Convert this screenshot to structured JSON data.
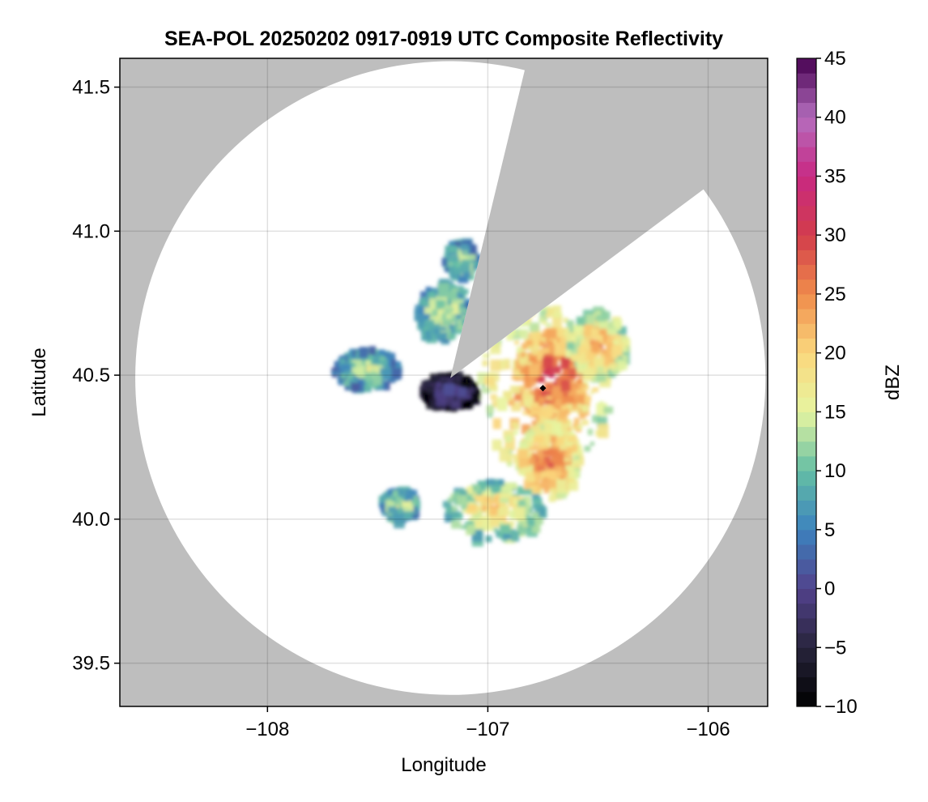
{
  "chart_data": {
    "type": "heatmap",
    "title": "SEA-POL 20250202 0917-0919 UTC Composite Reflectivity",
    "xlabel": "Longitude",
    "ylabel": "Latitude",
    "xlim": [
      -108.67,
      -105.73
    ],
    "ylim": [
      39.35,
      41.6
    ],
    "xticks": [
      -108,
      -107,
      -106
    ],
    "xtick_labels": [
      "−108",
      "−107",
      "−106"
    ],
    "yticks": [
      39.5,
      40.0,
      40.5,
      41.0,
      41.5
    ],
    "ytick_labels": [
      "39.5",
      "40.0",
      "40.5",
      "41.0",
      "41.5"
    ],
    "grid": true,
    "background_color": "#bebebe",
    "radar": {
      "center_lon": -107.17,
      "center_lat": 40.49,
      "radius_lon": 1.43,
      "radius_lat": 1.1,
      "blocked_sector_lon_lat": [
        [
          -107.17,
          40.49
        ],
        [
          -106.84,
          41.53
        ],
        [
          -106.06,
          41.12
        ]
      ]
    },
    "site_marker": {
      "lon": -106.75,
      "lat": 40.455,
      "color": "#000000"
    },
    "colorbar": {
      "label": "dBZ",
      "min": -10,
      "max": 45,
      "ticks": [
        -10,
        -5,
        0,
        5,
        10,
        15,
        20,
        25,
        30,
        35,
        40,
        45
      ],
      "tick_labels": [
        "−10",
        "−5",
        "0",
        "5",
        "10",
        "15",
        "20",
        "25",
        "30",
        "35",
        "40",
        "45"
      ],
      "colormap": "spectral_then_magenta_purple"
    },
    "echo_regions": [
      {
        "name": "east-main-band",
        "lon": -106.74,
        "lat": 40.44,
        "lon_half_width": 0.3,
        "lat_half_height": 0.3,
        "dbz": 22
      },
      {
        "name": "east-main-core",
        "lon": -106.7,
        "lat": 40.5,
        "lon_half_width": 0.16,
        "lat_half_height": 0.16,
        "dbz": 27
      },
      {
        "name": "east-south-tail",
        "lon": -106.72,
        "lat": 40.2,
        "lon_half_width": 0.14,
        "lat_half_height": 0.13,
        "dbz": 24
      },
      {
        "name": "east-northeast-lobe",
        "lon": -106.5,
        "lat": 40.6,
        "lon_half_width": 0.13,
        "lat_half_height": 0.12,
        "dbz": 21
      },
      {
        "name": "south-band",
        "lon": -106.97,
        "lat": 40.03,
        "lon_half_width": 0.22,
        "lat_half_height": 0.1,
        "dbz": 18
      },
      {
        "name": "south-band-west",
        "lon": -107.4,
        "lat": 40.05,
        "lon_half_width": 0.08,
        "lat_half_height": 0.05,
        "dbz": 14
      },
      {
        "name": "north-near-sector",
        "lon": -107.2,
        "lat": 40.72,
        "lon_half_width": 0.12,
        "lat_half_height": 0.1,
        "dbz": 14
      },
      {
        "name": "north-cell",
        "lon": -107.12,
        "lat": 40.9,
        "lon_half_width": 0.07,
        "lat_half_height": 0.06,
        "dbz": 13
      },
      {
        "name": "west-streak",
        "lon": -107.55,
        "lat": 40.52,
        "lon_half_width": 0.15,
        "lat_half_height": 0.07,
        "dbz": 12
      },
      {
        "name": "near-radar-low",
        "lon": -107.17,
        "lat": 40.44,
        "lon_half_width": 0.12,
        "lat_half_height": 0.06,
        "dbz": 0
      }
    ]
  }
}
